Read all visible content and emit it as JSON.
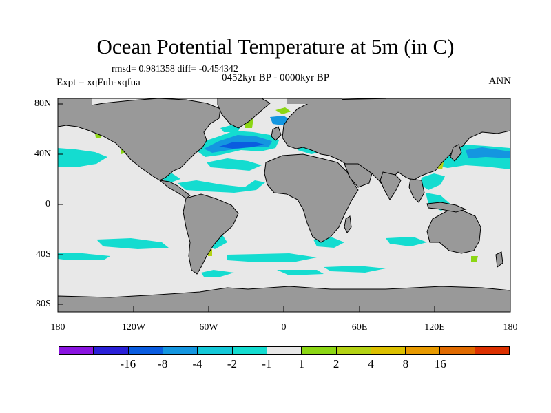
{
  "title": "Ocean Potential Temperature at 5m (in C)",
  "stats": "rmsd= 0.981358 diff= -0.454342",
  "experiment": "Expt = xqFuh-xqfua",
  "period": "0452kyr BP - 0000kyr BP",
  "season": "ANN",
  "y_ticks": [
    "80N",
    "40N",
    "0",
    "40S",
    "80S"
  ],
  "x_ticks": [
    "180",
    "120W",
    "60W",
    "0",
    "60E",
    "120E",
    "180"
  ],
  "colors": {
    "ocean": "#e8e8e8",
    "land": "#999999",
    "coast": "#000000"
  },
  "colorbar": {
    "colors": [
      "#8a14e0",
      "#2a20d8",
      "#0a5ce0",
      "#1496e0",
      "#14c8d8",
      "#14dcd0",
      "#e8e8e8",
      "#8cd614",
      "#b4d214",
      "#dcc000",
      "#e89a00",
      "#e06a00",
      "#dc3000"
    ],
    "labels": [
      "-16",
      "-8",
      "-4",
      "-2",
      "-1",
      "1",
      "2",
      "4",
      "8",
      "16"
    ]
  }
}
